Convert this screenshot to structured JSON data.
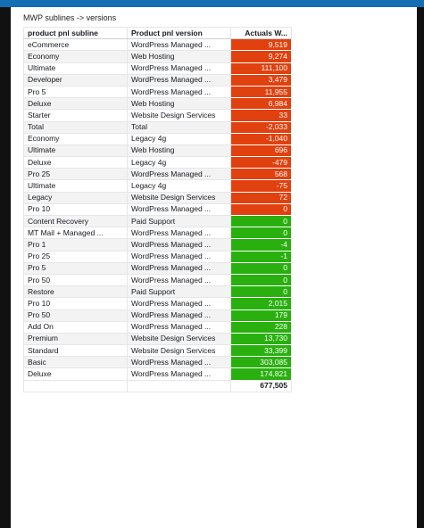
{
  "window": {
    "logo_text": ""
  },
  "visual": {
    "title": "MWP sublines -> versions"
  },
  "table": {
    "headers": [
      "product pnl subline",
      "Product pnl version",
      "Actuals W..."
    ],
    "colors": {
      "red": "#e1400f",
      "green": "#29b00f",
      "neutral": "#ffffff"
    },
    "rows": [
      {
        "subline": "eCommerce",
        "version": "WordPress Managed ...",
        "value": "9,519",
        "color": "red"
      },
      {
        "subline": "Economy",
        "version": "Web Hosting",
        "value": "9,274",
        "color": "red"
      },
      {
        "subline": "Ultimate",
        "version": "WordPress Managed ...",
        "value": "111,100",
        "color": "red"
      },
      {
        "subline": "Developer",
        "version": "WordPress Managed ...",
        "value": "3,479",
        "color": "red"
      },
      {
        "subline": "Pro 5",
        "version": "WordPress Managed ...",
        "value": "11,955",
        "color": "red"
      },
      {
        "subline": "Deluxe",
        "version": "Web Hosting",
        "value": "6,984",
        "color": "red"
      },
      {
        "subline": "Starter",
        "version": "Website Design Services",
        "value": "33",
        "color": "red"
      },
      {
        "subline": "Total",
        "version": "Total",
        "value": "-2,033",
        "color": "red"
      },
      {
        "subline": "Economy",
        "version": "Legacy 4g",
        "value": "-1,040",
        "color": "red"
      },
      {
        "subline": "Ultimate",
        "version": "Web Hosting",
        "value": "696",
        "color": "red"
      },
      {
        "subline": "Deluxe",
        "version": "Legacy 4g",
        "value": "-479",
        "color": "red"
      },
      {
        "subline": "Pro 25",
        "version": "WordPress Managed ...",
        "value": "568",
        "color": "red"
      },
      {
        "subline": "Ultimate",
        "version": "Legacy 4g",
        "value": "-75",
        "color": "red"
      },
      {
        "subline": "Legacy",
        "version": "Website Design Services",
        "value": "72",
        "color": "red"
      },
      {
        "subline": "Pro 10",
        "version": "WordPress Managed ...",
        "value": "0",
        "color": "red"
      },
      {
        "subline": "Content Recovery",
        "version": "Paid Support",
        "value": "0",
        "color": "green"
      },
      {
        "subline": "MT Mail + Managed ...",
        "version": "WordPress Managed ...",
        "value": "0",
        "color": "green"
      },
      {
        "subline": "Pro 1",
        "version": "WordPress Managed ...",
        "value": "-4",
        "color": "green"
      },
      {
        "subline": "Pro 25",
        "version": "WordPress Managed ...",
        "value": "-1",
        "color": "green"
      },
      {
        "subline": "Pro 5",
        "version": "WordPress Managed ...",
        "value": "0",
        "color": "green"
      },
      {
        "subline": "Pro 50",
        "version": "WordPress Managed ...",
        "value": "0",
        "color": "green"
      },
      {
        "subline": "Restore",
        "version": "Paid Support",
        "value": "0",
        "color": "green"
      },
      {
        "subline": "Pro 10",
        "version": "WordPress Managed ...",
        "value": "2,015",
        "color": "green"
      },
      {
        "subline": "Pro 50",
        "version": "WordPress Managed ...",
        "value": "179",
        "color": "green"
      },
      {
        "subline": "Add On",
        "version": "WordPress Managed ...",
        "value": "228",
        "color": "green"
      },
      {
        "subline": "Premium",
        "version": "Website Design Services",
        "value": "13,730",
        "color": "green"
      },
      {
        "subline": "Standard",
        "version": "Website Design Services",
        "value": "33,399",
        "color": "green"
      },
      {
        "subline": "Basic",
        "version": "WordPress Managed ...",
        "value": "303,085",
        "color": "green"
      },
      {
        "subline": "Deluxe",
        "version": "WordPress Managed ...",
        "value": "174,821",
        "color": "green"
      }
    ],
    "grand_total": "677,505"
  }
}
